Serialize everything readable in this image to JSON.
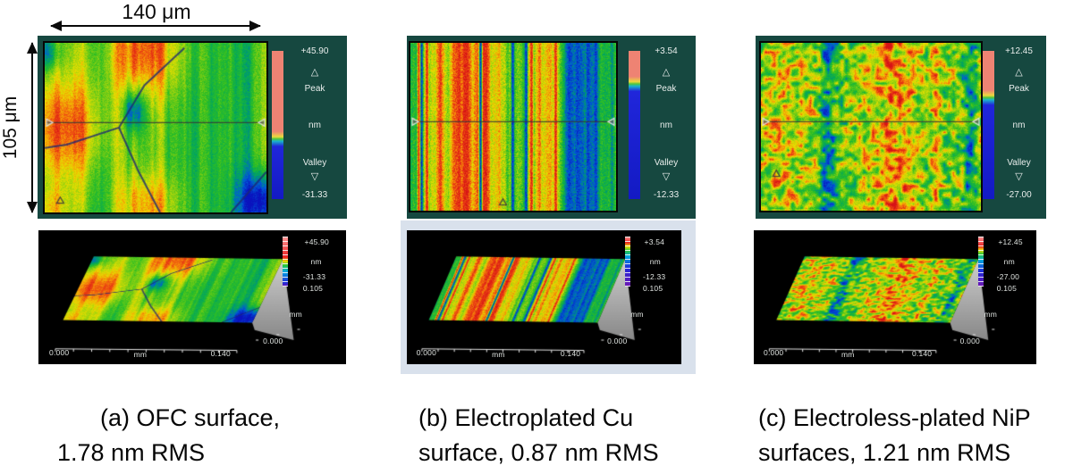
{
  "annotations": {
    "width_label": "140 μm",
    "height_label": "105 μm"
  },
  "colors": {
    "panel_background": "#164840",
    "plot3d_background": "#000000",
    "peak_bar_color": "#ee8373",
    "valley_bar_color": "#131ac4",
    "pale_frame": "#d9e1ec"
  },
  "panels": [
    {
      "id": "a",
      "map2d": {
        "peak_value": "+45.90",
        "peak_marker": "△",
        "peak_label": "Peak",
        "unit": "nm",
        "valley_label": "Valley",
        "valley_marker": "▽",
        "valley_value": "-31.33"
      },
      "plot3d": {
        "peak_value": "+45.90",
        "unit": "nm",
        "valley_value": "-31.33",
        "depth_extent": "0.105",
        "depth_unit": "mm",
        "depth_origin": "0.000",
        "x_origin": "0.000",
        "x_unit": "mm",
        "x_end": "0.140"
      },
      "caption": {
        "line1": "(a) OFC surface,",
        "line2": "1.78 nm RMS"
      }
    },
    {
      "id": "b",
      "map2d": {
        "peak_value": "+3.54",
        "peak_marker": "△",
        "peak_label": "Peak",
        "unit": "nm",
        "valley_label": "Valley",
        "valley_marker": "▽",
        "valley_value": "-12.33"
      },
      "plot3d": {
        "peak_value": "+3.54",
        "unit": "nm",
        "valley_value": "-12.33",
        "depth_extent": "0.105",
        "depth_unit": "mm",
        "depth_origin": "0.000",
        "x_origin": "0.000",
        "x_unit": "mm",
        "x_end": "0.140"
      },
      "caption": {
        "line1": "(b) Electroplated Cu",
        "line2": "surface, 0.87 nm RMS"
      }
    },
    {
      "id": "c",
      "map2d": {
        "peak_value": "+12.45",
        "peak_marker": "△",
        "peak_label": "Peak",
        "unit": "nm",
        "valley_label": "Valley",
        "valley_marker": "▽",
        "valley_value": "-27.00"
      },
      "plot3d": {
        "peak_value": "+12.45",
        "unit": "nm",
        "valley_value": "-27.00",
        "depth_extent": "0.105",
        "depth_unit": "mm",
        "depth_origin": "0.000",
        "x_origin": "0.000",
        "x_unit": "mm",
        "x_end": "0.140"
      },
      "caption": {
        "line1": "(c) Electroless-plated NiP",
        "line2": "surfaces, 1.21 nm RMS"
      }
    }
  ]
}
